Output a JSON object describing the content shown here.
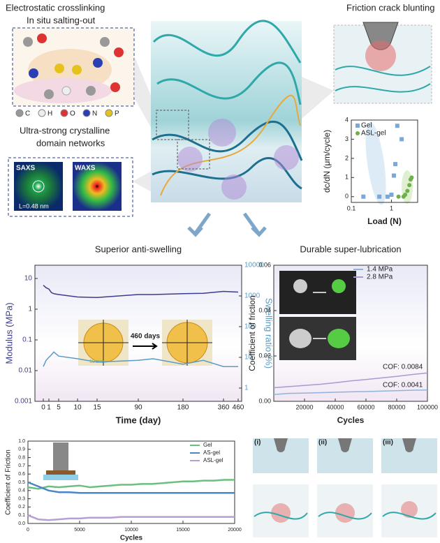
{
  "labels": {
    "crosslink_title": "Electrostatic crosslinking",
    "crosslink_subtitle": "In situ salting-out",
    "elements": [
      "C",
      "H",
      "O",
      "N",
      "P"
    ],
    "crystal_title": "Ultra-strong crystalline",
    "crystal_subtitle": "domain networks",
    "saxs": "SAXS",
    "waxs": "WAXS",
    "spacing": "L=0.48 nm",
    "blunting_title": "Friction crack blunting",
    "panel_labels": [
      "(i)",
      "(ii)",
      "(iii)"
    ]
  },
  "chart_data": [
    {
      "type": "scatter",
      "ylabel": "dc/dN (μm/cycle)",
      "xlabel": "Load (N)",
      "xscale": "log",
      "xlim": [
        0.1,
        4.5
      ],
      "xticks": [
        0.1,
        1
      ],
      "ylim": [
        -0.3,
        4
      ],
      "yticks": [
        0,
        1,
        2,
        3,
        4
      ],
      "legend": "upper left",
      "series": [
        {
          "name": "Gel",
          "color": "#7ba7d9",
          "marker": "square",
          "x": [
            0.2,
            0.5,
            0.8,
            1.0,
            1.15,
            1.25,
            1.4,
            1.8
          ],
          "values": [
            0,
            0,
            0,
            0.1,
            1.1,
            1.7,
            3.7,
            3.0
          ]
        },
        {
          "name": "ASL-gel",
          "color": "#6fb04a",
          "marker": "circle",
          "x": [
            1.5,
            2.0,
            2.2,
            2.5,
            2.8,
            3.0,
            3.2
          ],
          "values": [
            0,
            0,
            0.1,
            0.3,
            0.6,
            0.9,
            1.0
          ]
        }
      ]
    },
    {
      "type": "line",
      "title": "Superior anti-swelling",
      "xlabel": "Time (day)",
      "ylabel": "Modulus (MPa)",
      "y2label": "Swelling ratio (%)",
      "yscale": "log",
      "y2scale": "log",
      "xlim": [
        -1.5,
        480
      ],
      "xticks": [
        0,
        1,
        5,
        10,
        15,
        90,
        180,
        360,
        460
      ],
      "ylim": [
        0.001,
        27
      ],
      "yticks": [
        0.001,
        0.01,
        0.1,
        1,
        10
      ],
      "y2lim": [
        0.37,
        10000
      ],
      "y2ticks": [
        1,
        10,
        100,
        1000,
        10000
      ],
      "inset_label": "460 days",
      "scale_bar": "10 mm",
      "x": [
        0,
        0.5,
        1,
        2,
        3,
        5,
        10,
        15,
        90,
        120,
        180,
        270,
        360,
        460
      ],
      "series": [
        {
          "name": "Modulus",
          "color": "#3d3d8f",
          "values": [
            6,
            5,
            4.5,
            3.5,
            3.2,
            3,
            2.5,
            2.4,
            3.0,
            3.0,
            3.2,
            3.3,
            3.8,
            3.6
          ]
        },
        {
          "name": "Swelling ratio",
          "color": "#5a9bc4",
          "axis": "y2",
          "values": [
            5,
            8,
            10,
            12,
            15,
            11,
            9,
            7,
            8,
            9,
            6,
            8,
            5,
            5
          ]
        }
      ]
    },
    {
      "type": "line",
      "title": "Durable super-lubrication",
      "xlabel": "Cycles",
      "ylabel": "Coefficient of friction",
      "xlim": [
        0,
        100000
      ],
      "xticks": [
        20000,
        40000,
        60000,
        80000,
        100000
      ],
      "ylim": [
        0,
        0.06
      ],
      "yticks": [
        {
          "value": 0,
          "label": "0.00"
        },
        0.02,
        0.04,
        0.06
      ],
      "legend": "upper right",
      "annotations": [
        "COF: 0.0084",
        "COF: 0.0041"
      ],
      "x": [
        0,
        10000,
        20000,
        30000,
        40000,
        50000,
        60000,
        70000,
        80000,
        90000,
        100000
      ],
      "series": [
        {
          "name": "1.4 MPa",
          "color": "#8fb4dc",
          "values": [
            0.003,
            0.0035,
            0.0036,
            0.0038,
            0.004,
            0.0042,
            0.0043,
            0.0045,
            0.0047,
            0.0049,
            0.005
          ]
        },
        {
          "name": "2.8 MPa",
          "color": "#a89ad0",
          "values": [
            0.006,
            0.0065,
            0.007,
            0.0075,
            0.0082,
            0.009,
            0.0096,
            0.0103,
            0.011,
            0.0118,
            0.0125
          ]
        }
      ]
    },
    {
      "type": "line",
      "xlabel": "Cycles",
      "ylabel": "Coefficient of Friction",
      "xlim": [
        0,
        20000
      ],
      "xticks": [
        0,
        5000,
        10000,
        15000,
        20000
      ],
      "ylim": [
        0,
        1
      ],
      "yticks": [
        {
          "value": 0,
          "label": "0.0"
        },
        0.1,
        0.2,
        0.3,
        0.4,
        0.5,
        0.6,
        0.7,
        0.8,
        0.9,
        {
          "value": 1,
          "label": "1.0"
        }
      ],
      "legend": "upper right",
      "x": [
        0,
        1000,
        2000,
        3000,
        4000,
        5000,
        6000,
        7000,
        8000,
        9000,
        10000,
        11000,
        12000,
        13000,
        14000,
        15000,
        16000,
        17000,
        18000,
        19000,
        20000
      ],
      "series": [
        {
          "name": "Gel",
          "color": "#6dbf7e",
          "values": [
            0.44,
            0.42,
            0.45,
            0.44,
            0.45,
            0.46,
            0.44,
            0.45,
            0.46,
            0.47,
            0.47,
            0.48,
            0.48,
            0.49,
            0.5,
            0.51,
            0.51,
            0.52,
            0.52,
            0.53,
            0.53
          ]
        },
        {
          "name": "AS-gel",
          "color": "#4a86c6",
          "values": [
            0.5,
            0.45,
            0.4,
            0.38,
            0.38,
            0.37,
            0.37,
            0.37,
            0.37,
            0.37,
            0.37,
            0.37,
            0.37,
            0.37,
            0.37,
            0.37,
            0.37,
            0.37,
            0.37,
            0.37,
            0.37
          ]
        },
        {
          "name": "ASL-gel",
          "color": "#b79fd6",
          "values": [
            0.1,
            0.05,
            0.04,
            0.05,
            0.06,
            0.06,
            0.07,
            0.07,
            0.07,
            0.08,
            0.08,
            0.08,
            0.08,
            0.08,
            0.08,
            0.08,
            0.08,
            0.08,
            0.08,
            0.08,
            0.08
          ]
        }
      ]
    }
  ]
}
